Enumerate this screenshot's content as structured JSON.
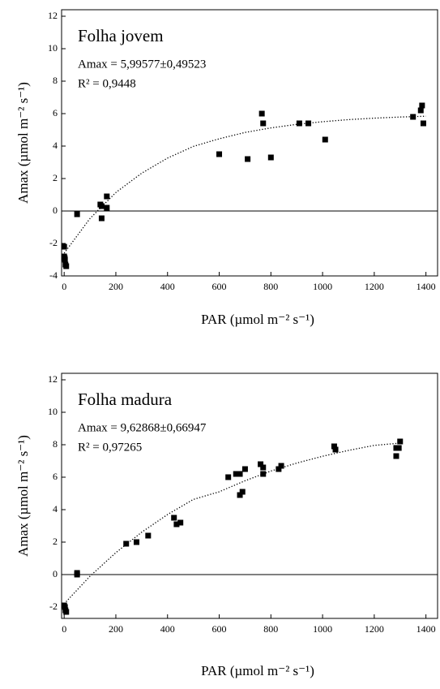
{
  "chart_data": [
    {
      "type": "scatter",
      "title": "Folha jovem",
      "annotations": [
        "Amax = 5,99577±0,49523",
        "R² = 0,9448"
      ],
      "x_label": "PAR  (µmol m⁻² s⁻¹)",
      "y_label": "Amax  (µmol m⁻² s⁻¹)",
      "xlim": [
        -10,
        1445
      ],
      "ylim": [
        -4,
        12.4
      ],
      "xticks": [
        0,
        200,
        400,
        600,
        800,
        1000,
        1200,
        1400
      ],
      "yticks": [
        -4,
        -2,
        0,
        2,
        4,
        6,
        8,
        10,
        12
      ],
      "zero_line": true,
      "series": [
        {
          "type": "scatter",
          "color": "#000000",
          "x": [
            0,
            0,
            3,
            5,
            8,
            2,
            50,
            140,
            145,
            145,
            165,
            165,
            600,
            710,
            765,
            770,
            800,
            910,
            945,
            1010,
            1350,
            1380,
            1385,
            1390
          ],
          "values": [
            -2.2,
            -2.8,
            -3.0,
            -3.3,
            -3.4,
            -2.9,
            -0.2,
            0.4,
            0.3,
            -0.45,
            0.9,
            0.2,
            3.5,
            3.2,
            6.0,
            5.4,
            3.3,
            5.4,
            5.4,
            4.4,
            5.8,
            6.2,
            6.5,
            5.4
          ]
        },
        {
          "type": "line",
          "style": "dotted",
          "color": "#000000",
          "x": [
            0,
            100,
            200,
            300,
            400,
            500,
            600,
            700,
            800,
            900,
            1000,
            1100,
            1200,
            1300,
            1400
          ],
          "values": [
            -2.6,
            -0.46,
            1.14,
            2.33,
            3.26,
            3.98,
            4.45,
            4.84,
            5.12,
            5.34,
            5.5,
            5.63,
            5.72,
            5.79,
            5.84
          ]
        }
      ]
    },
    {
      "type": "scatter",
      "title": "Folha madura",
      "annotations": [
        "Amax = 9,62868±0,66947",
        "R² = 0,97265"
      ],
      "x_label": "PAR  (µmol m⁻² s⁻¹)",
      "y_label": "Amax  (µmol m⁻² s⁻¹)",
      "xlim": [
        -10,
        1445
      ],
      "ylim": [
        -2.7,
        12.4
      ],
      "xticks": [
        0,
        200,
        400,
        600,
        800,
        1000,
        1200,
        1400
      ],
      "yticks": [
        -2,
        0,
        2,
        4,
        6,
        8,
        10,
        12
      ],
      "zero_line": true,
      "series": [
        {
          "type": "scatter",
          "color": "#000000",
          "x": [
            0,
            3,
            5,
            8,
            50,
            50,
            240,
            280,
            325,
            425,
            435,
            450,
            635,
            665,
            680,
            680,
            690,
            700,
            760,
            770,
            770,
            830,
            840,
            1045,
            1050,
            1285,
            1285,
            1295,
            1300
          ],
          "values": [
            -1.9,
            -2.0,
            -2.2,
            -2.3,
            0.0,
            0.1,
            1.9,
            2.0,
            2.4,
            3.5,
            3.1,
            3.2,
            6.0,
            6.2,
            6.2,
            4.9,
            5.1,
            6.5,
            6.8,
            6.6,
            6.2,
            6.5,
            6.7,
            7.9,
            7.7,
            7.8,
            7.3,
            7.8,
            8.2
          ]
        },
        {
          "type": "line",
          "style": "dotted",
          "color": "#000000",
          "x": [
            0,
            100,
            200,
            300,
            400,
            500,
            600,
            700,
            800,
            900,
            1000,
            1100,
            1200,
            1300
          ],
          "values": [
            -1.8,
            -0.1,
            1.35,
            2.61,
            3.7,
            4.63,
            5.1,
            5.78,
            6.38,
            6.87,
            7.29,
            7.65,
            7.96,
            8.1
          ]
        }
      ]
    }
  ]
}
